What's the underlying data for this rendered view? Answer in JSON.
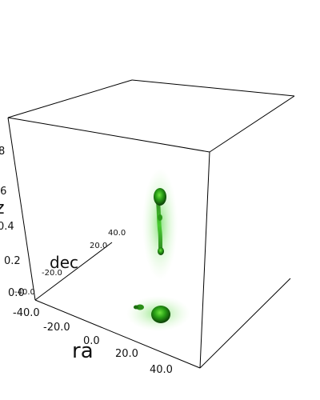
{
  "viewer": {
    "axes": {
      "ra": {
        "label": "ra",
        "ticks": [
          "-40.0",
          "-20.0",
          "0.0",
          "20.0",
          "40.0"
        ]
      },
      "dec": {
        "label": "dec",
        "ticks": [
          "-40.0",
          "-20.0",
          "20.0",
          "40.0"
        ]
      },
      "z": {
        "label": "z",
        "ticks": [
          "0.0",
          "0.2",
          "0.4",
          ".6",
          "8"
        ]
      }
    },
    "colors": {
      "background": "#ffffff",
      "box_lines": "#000000",
      "emission": "#33cc22",
      "emission_core": "#0b3d06"
    }
  }
}
